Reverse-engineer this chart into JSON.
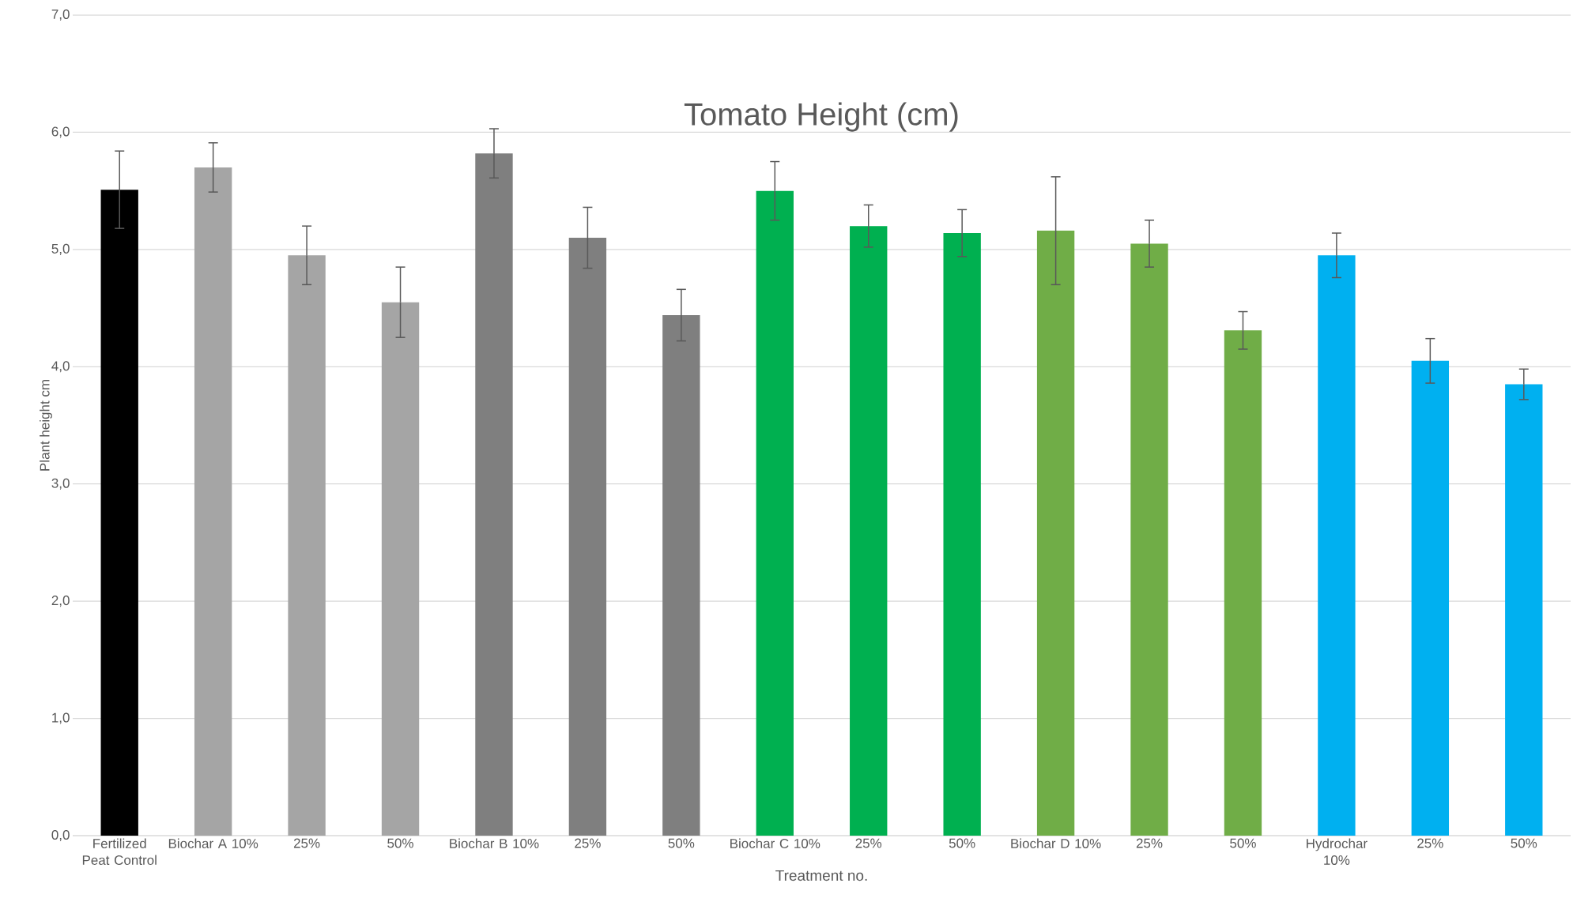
{
  "chart_data": {
    "type": "bar",
    "title": "Tomato Height (cm)",
    "xlabel": "Treatment no.",
    "ylabel": "Plant height cm",
    "categories": [
      "Fertilized Peat Control",
      "Biochar A 10%",
      "25%",
      "50%",
      "Biochar B 10%",
      "25%",
      "50%",
      "Biochar C 10%",
      "25%",
      "50%",
      "Biochar D 10%",
      "25%",
      "50%",
      "Hydrochar 10%",
      "25%",
      "50%"
    ],
    "values": [
      5.51,
      5.7,
      4.95,
      4.55,
      5.82,
      5.1,
      4.44,
      5.5,
      5.2,
      5.14,
      5.16,
      5.05,
      4.31,
      4.95,
      4.05,
      3.85
    ],
    "errors": [
      0.33,
      0.21,
      0.25,
      0.3,
      0.21,
      0.26,
      0.22,
      0.25,
      0.18,
      0.2,
      0.46,
      0.2,
      0.16,
      0.19,
      0.19,
      0.13
    ],
    "colors": [
      "#000000",
      "#a5a5a5",
      "#a5a5a5",
      "#a5a5a5",
      "#7f7f7f",
      "#7f7f7f",
      "#7f7f7f",
      "#00b050",
      "#00b050",
      "#00b050",
      "#70ad47",
      "#70ad47",
      "#70ad47",
      "#00b0f0",
      "#00b0f0",
      "#00b0f0"
    ],
    "ylim": [
      0,
      7
    ],
    "yticks": [
      {
        "value": 0,
        "label": "0,0"
      },
      {
        "value": 1,
        "label": "1,0"
      },
      {
        "value": 2,
        "label": "2,0"
      },
      {
        "value": 3,
        "label": "3,0"
      },
      {
        "value": 4,
        "label": "4,0"
      },
      {
        "value": 5,
        "label": "5,0"
      },
      {
        "value": 6,
        "label": "6,0"
      },
      {
        "value": 7,
        "label": "7,0"
      }
    ],
    "grid": "y"
  }
}
